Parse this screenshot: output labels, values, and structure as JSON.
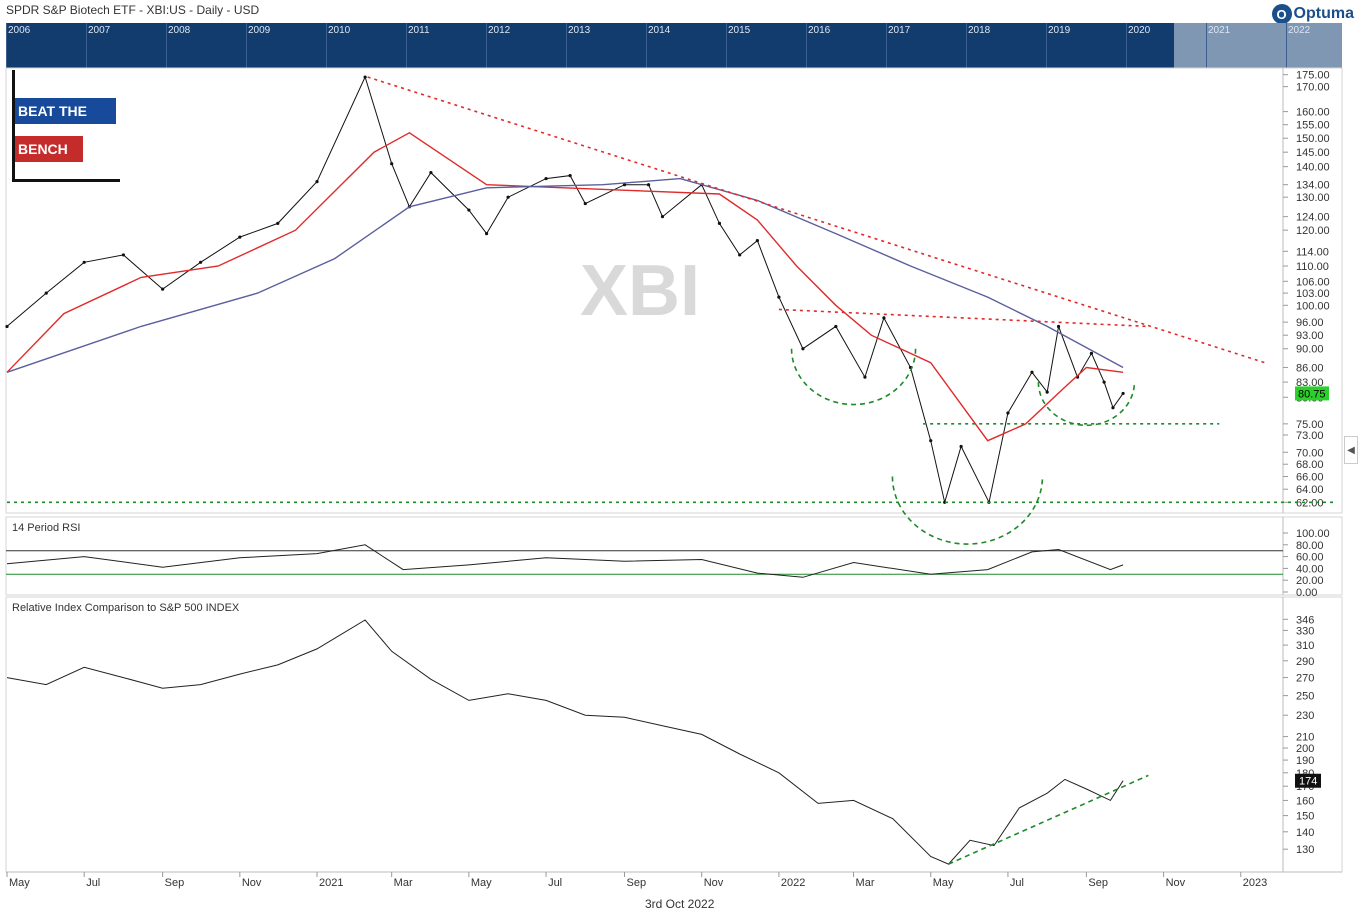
{
  "header": {
    "title": "SPDR S&P Biotech ETF - XBI:US - Daily - USD",
    "brand": "Optuma",
    "brand_mark": "O"
  },
  "navigator": {
    "years": [
      "2006",
      "2007",
      "2008",
      "2009",
      "2010",
      "2011",
      "2012",
      "2013",
      "2014",
      "2015",
      "2016",
      "2017",
      "2018",
      "2019",
      "2020",
      "2021",
      "2022"
    ],
    "visible_window_start": "2020"
  },
  "logo_overlay": {
    "line1": "BEAT THE",
    "line2": "BENCH"
  },
  "watermark": "XBI",
  "x_axis": {
    "labels": [
      "May",
      "Jul",
      "Sep",
      "Nov",
      "2021",
      "Mar",
      "May",
      "Jul",
      "Sep",
      "Nov",
      "2022",
      "Mar",
      "May",
      "Jul",
      "Sep",
      "Nov",
      "2023"
    ]
  },
  "footer": {
    "date": "3rd Oct 2022"
  },
  "side_control_icon": "chevron-left-icon",
  "colors": {
    "price": "#111111",
    "ma_fast": "#e02b2b",
    "ma_slow": "#5a5f9e",
    "trendline": "#e02b2b",
    "support": "#1f8a2a",
    "last_price_badge": "#2bd12b",
    "navigator_bg": "#123b6e"
  },
  "chart_data": [
    {
      "type": "line",
      "title": "SPDR S&P Biotech ETF - XBI:US - Daily - USD",
      "panel": "price",
      "y_scale": "log",
      "ylim": [
        61,
        177
      ],
      "y_ticks": [
        "175.00",
        "170.00",
        "160.00",
        "155.00",
        "150.00",
        "145.00",
        "140.00",
        "134.00",
        "130.00",
        "124.00",
        "120.00",
        "114.00",
        "110.00",
        "106.00",
        "103.00",
        "100.00",
        "96.00",
        "93.00",
        "90.00",
        "86.00",
        "83.00",
        "80.00",
        "75.00",
        "73.00",
        "70.00",
        "68.00",
        "66.00",
        "64.00",
        "62.00"
      ],
      "last_value_label": "80.75",
      "last_value": 80.75,
      "x_range": [
        "2020-05-01",
        "2023-02-01"
      ],
      "series": [
        {
          "style": "price",
          "points": [
            [
              "2020-05-01",
              95
            ],
            [
              "2020-06-01",
              103
            ],
            [
              "2020-07-01",
              111
            ],
            [
              "2020-08-01",
              113
            ],
            [
              "2020-09-01",
              104
            ],
            [
              "2020-10-01",
              111
            ],
            [
              "2020-11-01",
              118
            ],
            [
              "2020-12-01",
              122
            ],
            [
              "2021-01-01",
              135
            ],
            [
              "2021-02-08",
              174
            ],
            [
              "2021-03-01",
              141
            ],
            [
              "2021-03-15",
              127
            ],
            [
              "2021-04-01",
              138
            ],
            [
              "2021-05-01",
              126
            ],
            [
              "2021-05-15",
              119
            ],
            [
              "2021-06-01",
              130
            ],
            [
              "2021-07-01",
              136
            ],
            [
              "2021-07-20",
              137
            ],
            [
              "2021-08-01",
              128
            ],
            [
              "2021-09-01",
              134
            ],
            [
              "2021-09-20",
              134
            ],
            [
              "2021-10-01",
              124
            ],
            [
              "2021-11-01",
              134
            ],
            [
              "2021-11-15",
              122
            ],
            [
              "2021-12-01",
              113
            ],
            [
              "2021-12-15",
              117
            ],
            [
              "2022-01-01",
              102
            ],
            [
              "2022-01-20",
              90
            ],
            [
              "2022-02-15",
              95
            ],
            [
              "2022-03-10",
              84
            ],
            [
              "2022-03-25",
              97
            ],
            [
              "2022-04-15",
              86
            ],
            [
              "2022-05-01",
              72
            ],
            [
              "2022-05-12",
              62
            ],
            [
              "2022-05-25",
              71
            ],
            [
              "2022-06-16",
              62
            ],
            [
              "2022-07-01",
              77
            ],
            [
              "2022-07-20",
              85
            ],
            [
              "2022-08-01",
              81
            ],
            [
              "2022-08-10",
              95
            ],
            [
              "2022-08-25",
              84
            ],
            [
              "2022-09-05",
              89
            ],
            [
              "2022-09-15",
              83
            ],
            [
              "2022-09-22",
              78
            ],
            [
              "2022-09-30",
              80.75
            ]
          ]
        },
        {
          "style": "ma_fast",
          "points": [
            [
              "2020-05-01",
              85
            ],
            [
              "2020-06-15",
              98
            ],
            [
              "2020-08-15",
              107
            ],
            [
              "2020-10-15",
              110
            ],
            [
              "2020-12-15",
              120
            ],
            [
              "2021-02-15",
              145
            ],
            [
              "2021-03-15",
              152
            ],
            [
              "2021-05-15",
              134
            ],
            [
              "2021-07-15",
              133
            ],
            [
              "2021-09-15",
              132
            ],
            [
              "2021-11-15",
              131
            ],
            [
              "2021-12-15",
              123
            ],
            [
              "2022-01-15",
              110
            ],
            [
              "2022-02-15",
              100
            ],
            [
              "2022-03-15",
              93
            ],
            [
              "2022-05-01",
              87
            ],
            [
              "2022-06-15",
              72
            ],
            [
              "2022-07-15",
              75
            ],
            [
              "2022-08-15",
              82
            ],
            [
              "2022-09-01",
              86
            ],
            [
              "2022-09-30",
              85
            ]
          ]
        },
        {
          "style": "ma_slow",
          "points": [
            [
              "2020-05-01",
              85
            ],
            [
              "2020-08-15",
              95
            ],
            [
              "2020-11-15",
              103
            ],
            [
              "2021-01-15",
              112
            ],
            [
              "2021-03-15",
              127
            ],
            [
              "2021-05-15",
              133
            ],
            [
              "2021-08-15",
              134
            ],
            [
              "2021-10-15",
              136
            ],
            [
              "2021-12-15",
              129
            ],
            [
              "2022-02-15",
              119
            ],
            [
              "2022-04-15",
              110
            ],
            [
              "2022-06-15",
              102
            ],
            [
              "2022-08-01",
              95
            ],
            [
              "2022-09-30",
              86
            ]
          ]
        }
      ],
      "annotations": [
        {
          "type": "trendline",
          "style": "dotted-red",
          "from": [
            "2021-02-10",
            174
          ],
          "to": [
            "2023-01-20",
            87
          ]
        },
        {
          "type": "trendline",
          "style": "dotted-red",
          "from": [
            "2022-01-01",
            99
          ],
          "to": [
            "2022-10-20",
            95
          ]
        },
        {
          "type": "hline",
          "style": "dotted-green",
          "value": 75,
          "from": "2022-04-25",
          "to": "2022-12-15"
        },
        {
          "type": "hline",
          "style": "dotted-green",
          "value": 62,
          "from": "2020-05-01",
          "to": "2023-03-15"
        },
        {
          "type": "arc",
          "style": "dashed-green",
          "center": [
            "2022-03-01",
            90
          ],
          "note": "left shoulder"
        },
        {
          "type": "arc",
          "style": "dashed-green",
          "center": [
            "2022-05-30",
            66
          ],
          "note": "head"
        },
        {
          "type": "arc",
          "style": "dashed-green",
          "center": [
            "2022-09-01",
            83
          ],
          "note": "right shoulder"
        }
      ]
    },
    {
      "type": "line",
      "title": "14 Period RSI",
      "panel": "rsi",
      "ylim": [
        0,
        100
      ],
      "y_ticks": [
        "100.00",
        "80.00",
        "60.00",
        "40.00",
        "20.00",
        "0.00"
      ],
      "reference_lines": [
        70,
        30
      ],
      "series": [
        {
          "style": "rsi",
          "points": [
            [
              "2020-05-01",
              48
            ],
            [
              "2020-07-01",
              60
            ],
            [
              "2020-09-01",
              42
            ],
            [
              "2020-11-01",
              58
            ],
            [
              "2021-01-01",
              65
            ],
            [
              "2021-02-08",
              80
            ],
            [
              "2021-03-10",
              38
            ],
            [
              "2021-05-01",
              46
            ],
            [
              "2021-07-01",
              58
            ],
            [
              "2021-09-01",
              52
            ],
            [
              "2021-11-01",
              55
            ],
            [
              "2021-12-15",
              32
            ],
            [
              "2022-01-20",
              25
            ],
            [
              "2022-03-01",
              50
            ],
            [
              "2022-05-01",
              30
            ],
            [
              "2022-06-15",
              38
            ],
            [
              "2022-07-20",
              68
            ],
            [
              "2022-08-10",
              72
            ],
            [
              "2022-09-20",
              38
            ],
            [
              "2022-09-30",
              46
            ]
          ]
        }
      ]
    },
    {
      "type": "line",
      "title": "Relative Index Comparison to S&P 500 INDEX",
      "panel": "relative",
      "y_scale": "log",
      "ylim": [
        120,
        360
      ],
      "y_ticks": [
        "346",
        "330",
        "310",
        "290",
        "270",
        "250",
        "230",
        "210",
        "200",
        "190",
        "180",
        "170",
        "160",
        "150",
        "140",
        "130"
      ],
      "last_value_label": "174",
      "last_value": 174,
      "series": [
        {
          "style": "relative",
          "points": [
            [
              "2020-05-01",
              270
            ],
            [
              "2020-06-01",
              262
            ],
            [
              "2020-07-01",
              282
            ],
            [
              "2020-08-01",
              270
            ],
            [
              "2020-09-01",
              258
            ],
            [
              "2020-10-01",
              262
            ],
            [
              "2020-11-01",
              274
            ],
            [
              "2020-12-01",
              285
            ],
            [
              "2021-01-01",
              305
            ],
            [
              "2021-02-08",
              345
            ],
            [
              "2021-03-01",
              302
            ],
            [
              "2021-04-01",
              268
            ],
            [
              "2021-05-01",
              245
            ],
            [
              "2021-06-01",
              252
            ],
            [
              "2021-07-01",
              245
            ],
            [
              "2021-08-01",
              230
            ],
            [
              "2021-09-01",
              228
            ],
            [
              "2021-10-01",
              220
            ],
            [
              "2021-11-01",
              212
            ],
            [
              "2021-12-01",
              195
            ],
            [
              "2022-01-01",
              180
            ],
            [
              "2022-02-01",
              158
            ],
            [
              "2022-03-01",
              160
            ],
            [
              "2022-04-01",
              148
            ],
            [
              "2022-05-01",
              126
            ],
            [
              "2022-05-15",
              122
            ],
            [
              "2022-06-01",
              135
            ],
            [
              "2022-06-20",
              132
            ],
            [
              "2022-07-10",
              155
            ],
            [
              "2022-08-01",
              165
            ],
            [
              "2022-08-15",
              175
            ],
            [
              "2022-09-01",
              168
            ],
            [
              "2022-09-20",
              160
            ],
            [
              "2022-09-30",
              174
            ]
          ]
        }
      ],
      "annotations": [
        {
          "type": "trendline",
          "style": "dashed-green",
          "from": [
            "2022-05-15",
            122
          ],
          "to": [
            "2022-10-20",
            178
          ]
        }
      ]
    }
  ]
}
